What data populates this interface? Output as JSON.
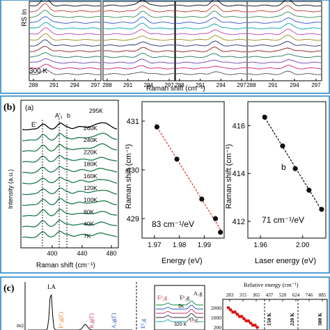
{
  "colors": {
    "frame": "#1f7fc4",
    "spectra": [
      "#000000",
      "#c0392b",
      "#2e8b57",
      "#3050d0",
      "#00a0b0",
      "#c040b0",
      "#9a8a20",
      "#1c2a70",
      "#8b1a1a",
      "#1f7a5a",
      "#6a3fb0",
      "#d02070",
      "#505050",
      "#e07a20",
      "#d62a8a"
    ],
    "fit_red": "#e03030",
    "point": "#111111",
    "highlight": "#e01010"
  },
  "panel_a": {
    "ylabel": "RS In",
    "xlabel": "Raman shift (cm⁻¹)",
    "temp_label": "300 K",
    "subplots": 4,
    "xticks": [
      "288",
      "291",
      "294",
      "297"
    ]
  },
  "panel_b": {
    "label": "(b)",
    "sub_a": {
      "label": "(a)",
      "peak_labels": [
        "E'",
        "A'₁",
        "b"
      ],
      "temperatures": [
        "295K",
        "260K",
        "240K",
        "220K",
        "180K",
        "160K",
        "120K",
        "100K",
        "80K",
        "40K",
        "7K"
      ],
      "ylabel": "Intensity (a.u.)",
      "xlabel": "Raman shift (cm⁻¹)",
      "xticks": [
        "400",
        "440",
        "480"
      ]
    },
    "sub_mid": {
      "ylabel": "Raman shift (cm⁻¹)",
      "xlabel": "Energy (eV)",
      "annotation": "83 cm⁻¹/eV",
      "xticks": [
        "1.97",
        "1.98",
        "1.99"
      ],
      "yticks": [
        "431",
        "430",
        "429"
      ]
    },
    "sub_right": {
      "ylabel": "Raman shift (cm⁻¹)",
      "xlabel": "Laser energy (eV)",
      "annotation": "71  cm⁻¹/eV",
      "series_label": "b",
      "xticks": [
        "1.96",
        "2.00"
      ],
      "yticks": [
        "416",
        "414",
        "412"
      ]
    }
  },
  "panel_c": {
    "label": "(c)",
    "peak_labels": [
      "LA",
      "E¹₂g(Γ)",
      "B₂g(Γ)",
      "A₁g(Γ)",
      "E¹₂g",
      "A₁g",
      "E¹₂g",
      "¹B₂g",
      "B₂g"
    ],
    "temp_labels": [
      "5K",
      "320 K"
    ],
    "right_title": "Relative energy (cm⁻¹)",
    "right_top_ticks": [
      "283",
      "315",
      "365",
      "437",
      "520",
      "624",
      "746",
      "885"
    ],
    "right_temp_labels": [
      "150 K",
      "220 K",
      "300 K"
    ],
    "right_yticks": [
      "2000",
      "1000",
      "200"
    ],
    "ylabel_fragment": "ns)"
  },
  "chart_data": [
    {
      "type": "line",
      "title": "",
      "xlabel": "Energy (eV)",
      "ylabel": "Raman shift (cm⁻¹)",
      "xlim": [
        1.965,
        1.998
      ],
      "ylim": [
        428.6,
        431.4
      ],
      "series": [
        {
          "x": [
            1.971,
            1.979,
            1.989,
            1.9945,
            1.9965
          ],
          "y": [
            430.88,
            430.22,
            429.4,
            429.0,
            428.72
          ]
        }
      ]
    },
    {
      "type": "line",
      "title": "",
      "xlabel": "Laser energy (eV)",
      "ylabel": "Raman shift (cm⁻¹)",
      "xlim": [
        1.948,
        2.022
      ],
      "ylim": [
        411.3,
        417.0
      ],
      "series": [
        {
          "name": "b",
          "x": [
            1.964,
            1.981,
            1.993,
            2.006,
            2.018
          ],
          "y": [
            416.35,
            415.15,
            414.2,
            413.3,
            412.5
          ]
        }
      ]
    }
  ]
}
